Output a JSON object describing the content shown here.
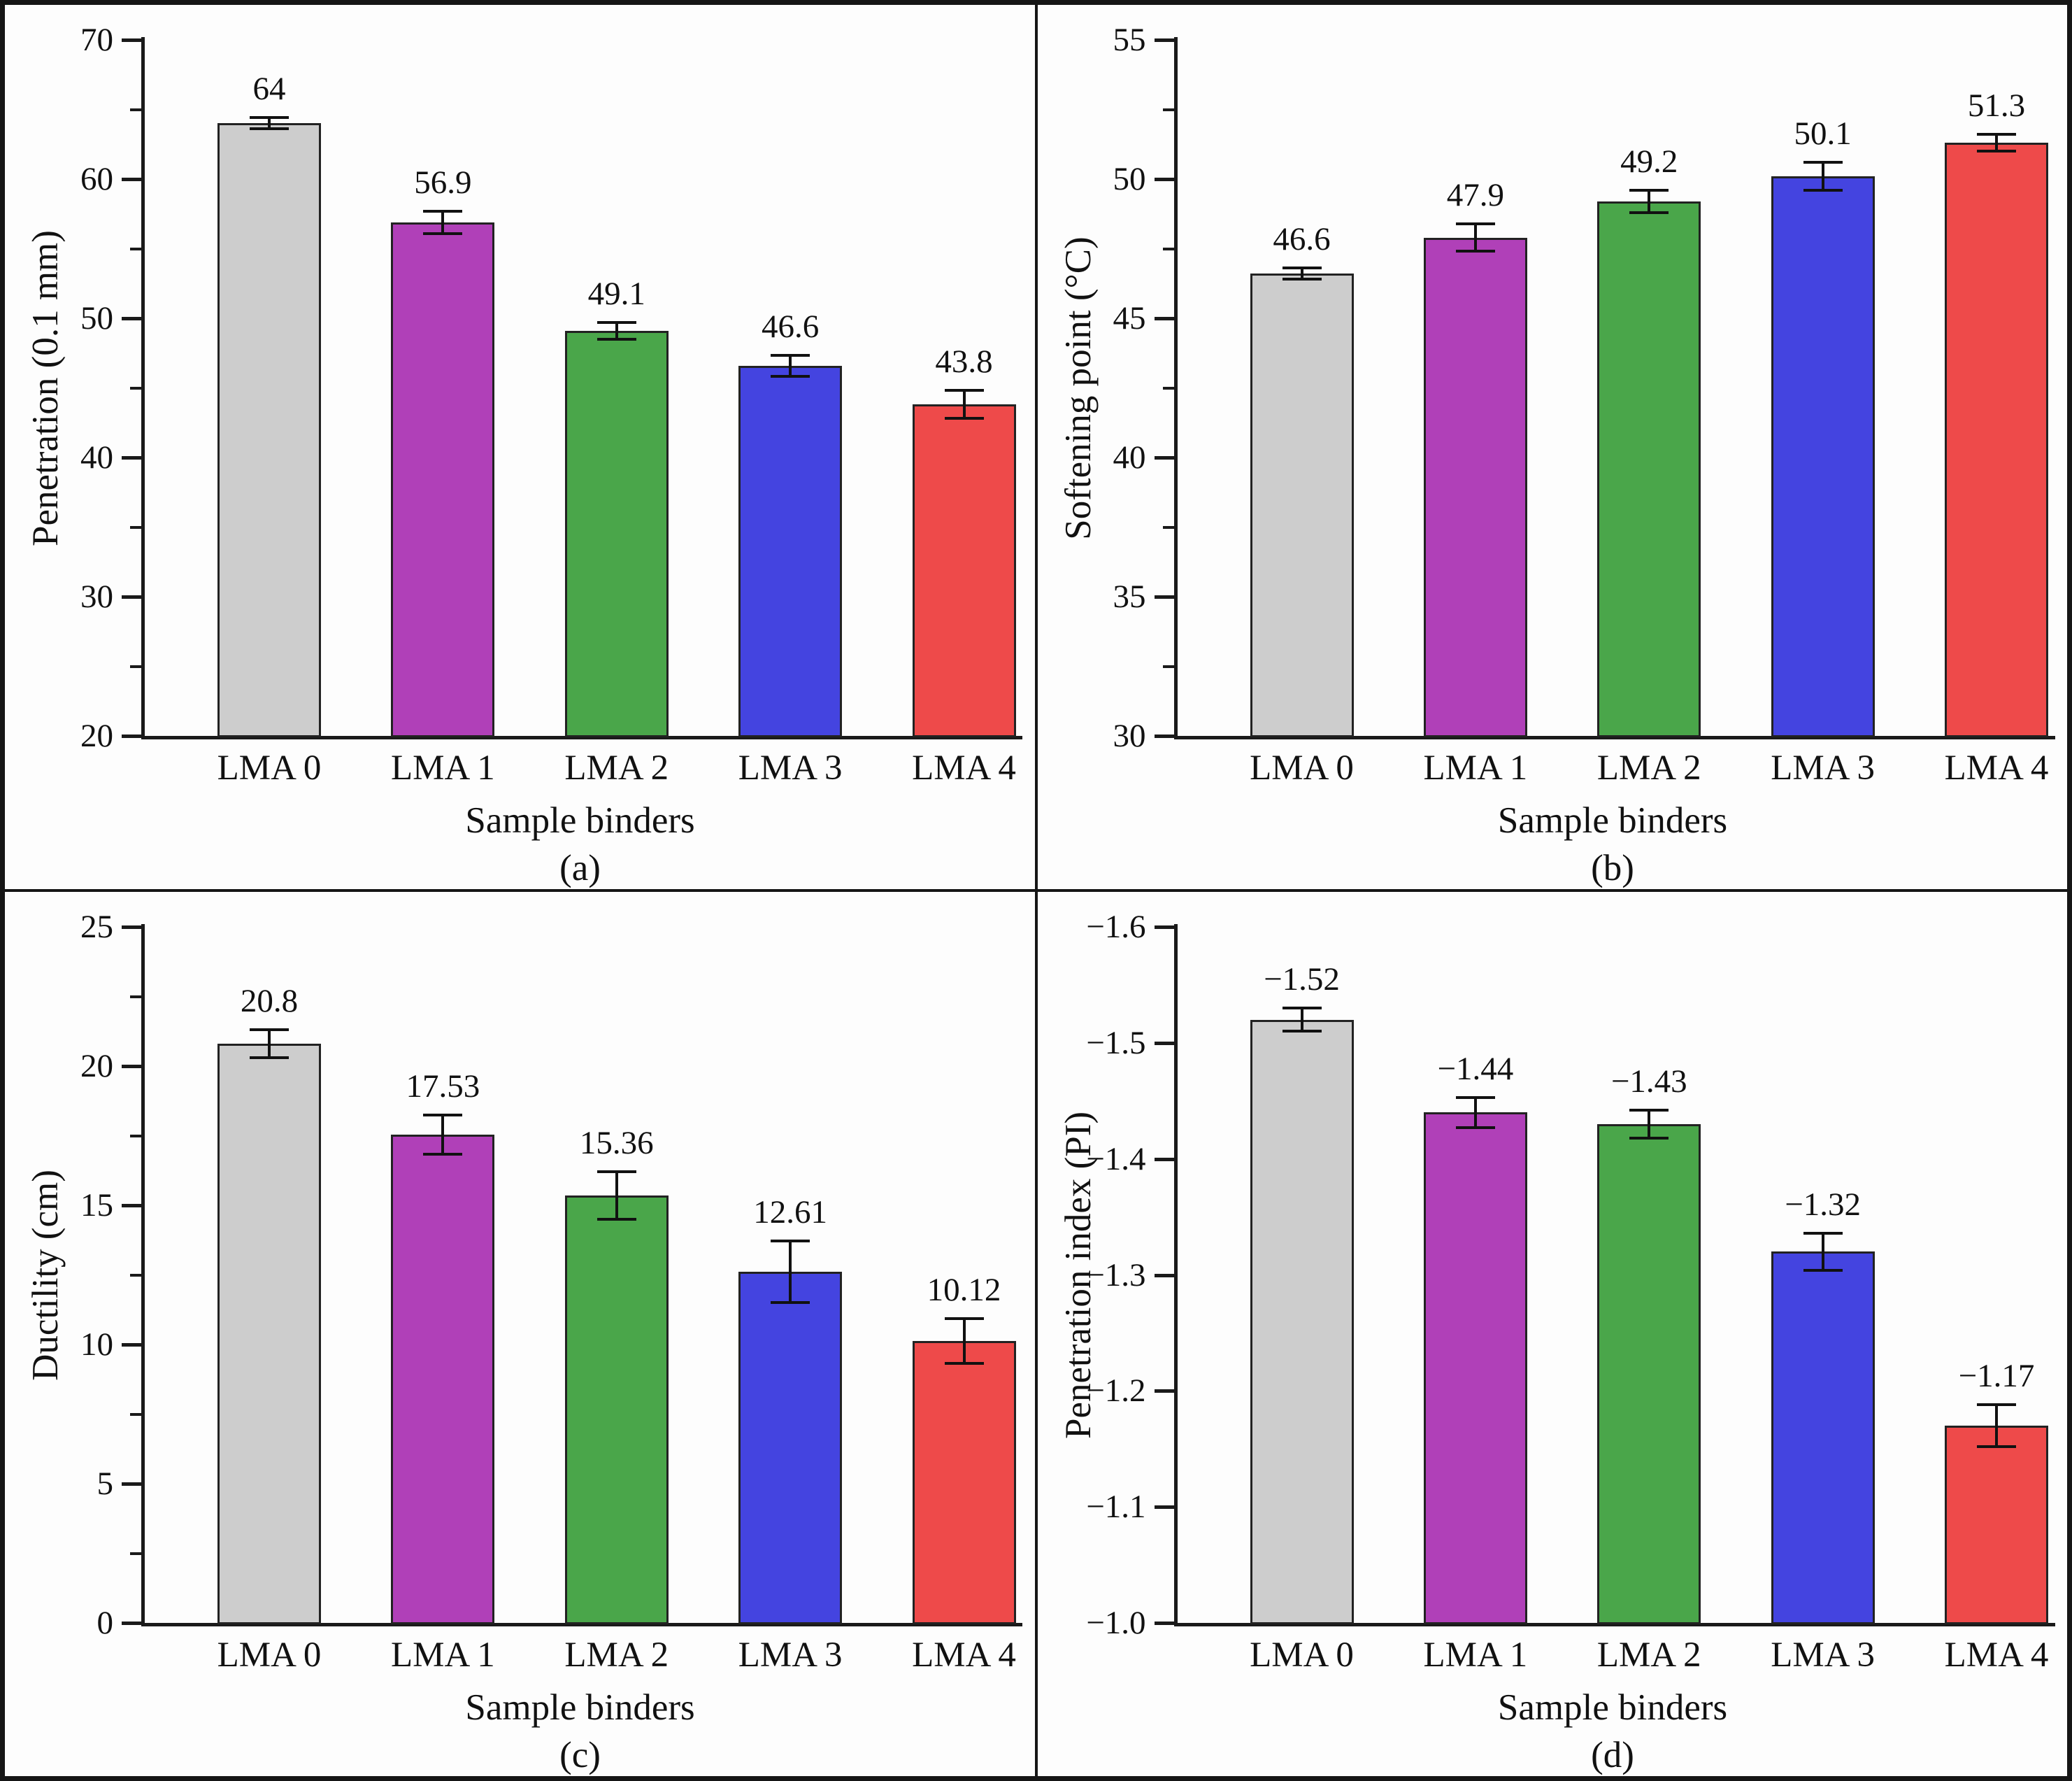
{
  "figure": {
    "background": "#fdfdfd",
    "frame_color": "#161616",
    "bar_edge_color": "#222222",
    "error_bar_color": "#111111",
    "text_color": "#111111",
    "bar_fill_colors": [
      "#cdcdcd",
      "#b040b8",
      "#4aa64a",
      "#4444e0",
      "#ee4a4a"
    ],
    "shared_xlabel": "Sample binders",
    "categories": [
      "LMA 0",
      "LMA 1",
      "LMA 2",
      "LMA 3",
      "LMA 4"
    ]
  },
  "chart_data": [
    {
      "type": "bar",
      "panel_label": "(a)",
      "ylabel": "Penetration (0.1 mm)",
      "xlabel": "Sample binders",
      "categories": [
        "LMA 0",
        "LMA 1",
        "LMA 2",
        "LMA 3",
        "LMA 4"
      ],
      "values": [
        64,
        56.9,
        49.1,
        46.6,
        43.8
      ],
      "plot_values": [
        64,
        56.9,
        49.1,
        46.6,
        43.8
      ],
      "value_labels": [
        "64",
        "56.9",
        "49.1",
        "46.6",
        "43.8"
      ],
      "errors": [
        0.4,
        0.8,
        0.6,
        0.75,
        1.0
      ],
      "ylim": [
        20,
        70
      ],
      "yticks": [
        20,
        30,
        40,
        50,
        60,
        70
      ],
      "ytick_labels": [
        "20",
        "30",
        "40",
        "50",
        "60",
        "70"
      ],
      "yticks_minor": [
        25,
        35,
        45,
        55,
        65
      ],
      "grid": false,
      "legend": false
    },
    {
      "type": "bar",
      "panel_label": "(b)",
      "ylabel": "Softening point (°C)",
      "xlabel": "Sample binders",
      "categories": [
        "LMA 0",
        "LMA 1",
        "LMA 2",
        "LMA 3",
        "LMA 4"
      ],
      "values": [
        46.6,
        47.9,
        49.2,
        50.1,
        51.3
      ],
      "plot_values": [
        46.6,
        47.9,
        49.2,
        50.1,
        51.3
      ],
      "value_labels": [
        "46.6",
        "47.9",
        "49.2",
        "50.1",
        "51.3"
      ],
      "errors": [
        0.2,
        0.5,
        0.4,
        0.5,
        0.3
      ],
      "ylim": [
        30,
        55
      ],
      "yticks": [
        30,
        35,
        40,
        45,
        50,
        55
      ],
      "ytick_labels": [
        "30",
        "35",
        "40",
        "45",
        "50",
        "55"
      ],
      "yticks_minor": [
        32.5,
        37.5,
        42.5,
        47.5,
        52.5
      ],
      "grid": false,
      "legend": false
    },
    {
      "type": "bar",
      "panel_label": "(c)",
      "ylabel": "Ductility (cm)",
      "xlabel": "Sample binders",
      "categories": [
        "LMA 0",
        "LMA 1",
        "LMA 2",
        "LMA 3",
        "LMA 4"
      ],
      "values": [
        20.8,
        17.53,
        15.36,
        12.61,
        10.12
      ],
      "plot_values": [
        20.8,
        17.53,
        15.36,
        12.61,
        10.12
      ],
      "value_labels": [
        "20.8",
        "17.53",
        "15.36",
        "12.61",
        "10.12"
      ],
      "errors": [
        0.5,
        0.7,
        0.85,
        1.1,
        0.8
      ],
      "ylim": [
        0,
        25
      ],
      "yticks": [
        0,
        5,
        10,
        15,
        20,
        25
      ],
      "ytick_labels": [
        "0",
        "5",
        "10",
        "15",
        "20",
        "25"
      ],
      "yticks_minor": [
        2.5,
        7.5,
        12.5,
        17.5,
        22.5
      ],
      "grid": false,
      "legend": false
    },
    {
      "type": "bar",
      "panel_label": "(d)",
      "ylabel": "Penetration index (PI)",
      "xlabel": "Sample binders",
      "categories": [
        "LMA 0",
        "LMA 1",
        "LMA 2",
        "LMA 3",
        "LMA 4"
      ],
      "values": [
        -1.52,
        -1.44,
        -1.43,
        -1.32,
        -1.17
      ],
      "plot_values": [
        1.52,
        1.44,
        1.43,
        1.32,
        1.17
      ],
      "value_labels": [
        "−1.52",
        "−1.44",
        "−1.43",
        "−1.32",
        "−1.17"
      ],
      "errors": [
        0.01,
        0.013,
        0.012,
        0.016,
        0.018
      ],
      "ylim": [
        1.0,
        1.6
      ],
      "yticks": [
        1.0,
        1.1,
        1.2,
        1.3,
        1.4,
        1.5,
        1.6
      ],
      "ytick_labels": [
        "−1.0",
        "−1.1",
        "−1.2",
        "−1.3",
        "−1.4",
        "−1.5",
        "−1.6"
      ],
      "yticks_minor": [],
      "grid": false,
      "legend": false
    }
  ]
}
